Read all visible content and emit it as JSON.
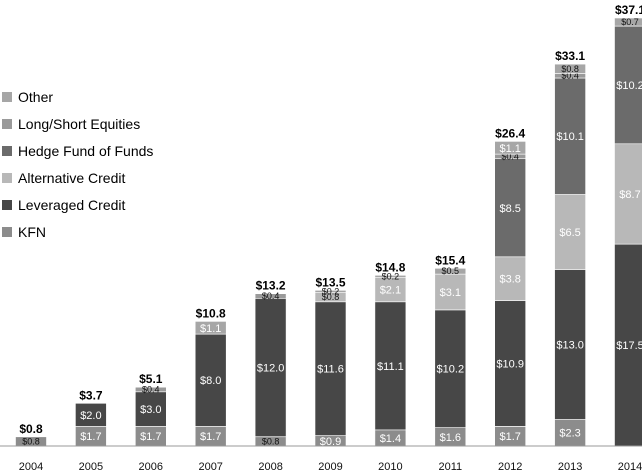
{
  "chart_data": {
    "type": "bar",
    "stacked": true,
    "title": "",
    "xlabel": "",
    "ylabel": "",
    "ylim": [
      0,
      37.1
    ],
    "grid": false,
    "legend_position": "left",
    "categories": [
      "2004",
      "2005",
      "2006",
      "2007",
      "2008",
      "2009",
      "2010",
      "2011",
      "2012",
      "2013",
      "2014"
    ],
    "totals": [
      "$0.8",
      "$3.7",
      "$5.1",
      "$10.8",
      "$13.2",
      "$13.5",
      "$14.8",
      "$15.4",
      "$26.4",
      "$33.1",
      "$37.1"
    ],
    "total_values": [
      0.8,
      3.7,
      5.1,
      10.8,
      13.2,
      13.5,
      14.8,
      15.4,
      26.4,
      33.1,
      37.1
    ],
    "series": [
      {
        "name": "KFN",
        "color": "#8c8c8c",
        "values": [
          0.8,
          1.7,
          1.7,
          1.7,
          0.8,
          0.9,
          1.4,
          1.6,
          1.7,
          2.3,
          0
        ],
        "labels": [
          "$0.8",
          "$1.7",
          "$1.7",
          "$1.7",
          "$0.8",
          "$0.9",
          "$1.4",
          "$1.6",
          "$1.7",
          "$2.3",
          ""
        ]
      },
      {
        "name": "Leveraged Credit",
        "color": "#474747",
        "values": [
          0,
          2.0,
          3.0,
          8.0,
          12.0,
          11.6,
          11.1,
          10.2,
          10.9,
          13.0,
          17.5
        ],
        "labels": [
          "",
          "$2.0",
          "$3.0",
          "$8.0",
          "$12.0",
          "$11.6",
          "$11.1",
          "$10.2",
          "$10.9",
          "$13.0",
          "$17.5"
        ]
      },
      {
        "name": "Alternative Credit",
        "color": "#b8b8b8",
        "values": [
          0,
          0,
          0,
          0,
          0,
          0.8,
          2.1,
          3.1,
          3.8,
          6.5,
          8.7
        ],
        "labels": [
          "",
          "",
          "",
          "",
          "",
          "$0.8",
          "$2.1",
          "$3.1",
          "$3.8",
          "$6.5",
          "$8.7"
        ]
      },
      {
        "name": "Hedge Fund of Funds",
        "color": "#6b6b6b",
        "values": [
          0,
          0,
          0,
          0,
          0,
          0,
          0,
          0,
          8.5,
          10.1,
          10.2
        ],
        "labels": [
          "",
          "",
          "",
          "",
          "",
          "",
          "",
          "",
          "$8.5",
          "$10.1",
          "$10.2"
        ]
      },
      {
        "name": "Long/Short Equities",
        "color": "#9a9a9a",
        "values": [
          0,
          0,
          0.4,
          0,
          0.4,
          0,
          0,
          0,
          0.4,
          0.4,
          0
        ],
        "labels": [
          "",
          "",
          "$0.4",
          "",
          "$0.4",
          "",
          "",
          "",
          "$0.4",
          "$0.4",
          ""
        ]
      },
      {
        "name": "Other",
        "color": "#a6a6a6",
        "values": [
          0,
          0,
          0,
          1.1,
          0,
          0.2,
          0.2,
          0.5,
          1.1,
          0.8,
          0.7
        ],
        "labels": [
          "",
          "",
          "",
          "$1.1",
          "",
          "$0.2",
          "$0.2",
          "$0.5",
          "$1.1",
          "$0.8",
          "$0.7"
        ]
      }
    ],
    "legend_order": [
      "Other",
      "Long/Short Equities",
      "Hedge Fund of Funds",
      "Alternative Credit",
      "Leveraged Credit",
      "KFN"
    ]
  }
}
